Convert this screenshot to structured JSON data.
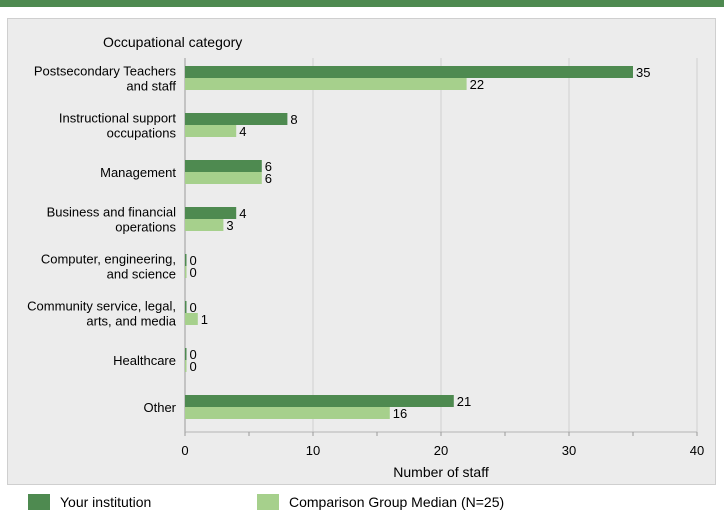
{
  "colors": {
    "rule": "#4e8a50",
    "series_primary": "#4e8a50",
    "series_comparison": "#a6d08c",
    "background": "#ececec",
    "grid": "#cfcfcf"
  },
  "chart_data": {
    "type": "bar",
    "orientation": "horizontal",
    "category_axis_title": "Occupational category",
    "xlabel": "Number of staff",
    "xlim": [
      0,
      40
    ],
    "xticks": [
      0,
      10,
      20,
      30,
      40
    ],
    "grid": true,
    "legend_position": "bottom",
    "categories": [
      [
        "Postsecondary Teachers",
        "and staff"
      ],
      [
        "Instructional support",
        "occupations"
      ],
      [
        "Management"
      ],
      [
        "Business and financial",
        "operations"
      ],
      [
        "Computer, engineering,",
        "and science"
      ],
      [
        "Community service, legal,",
        "arts, and media"
      ],
      [
        "Healthcare"
      ],
      [
        "Other"
      ]
    ],
    "series": [
      {
        "name": "Your institution",
        "values": [
          35,
          8,
          6,
          4,
          0,
          0,
          0,
          21
        ]
      },
      {
        "name": "Comparison Group Median (N=25)",
        "values": [
          22,
          4,
          6,
          3,
          0,
          1,
          0,
          16
        ]
      }
    ]
  }
}
